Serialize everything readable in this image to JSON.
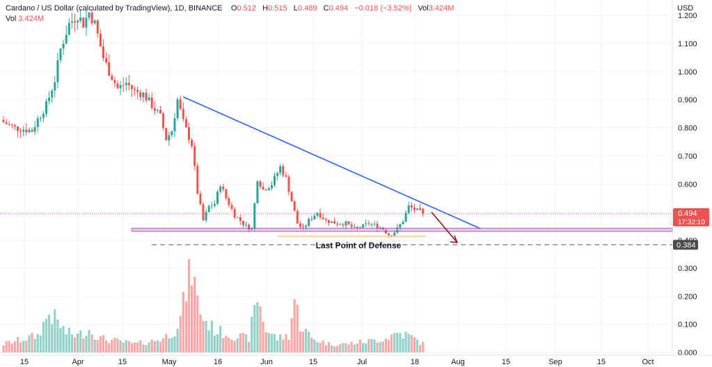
{
  "header": {
    "symbol_line": "Cardano / US Dollar (calculated by TradingView), 1D, BINANCE",
    "o_label": "O",
    "o_value": "0.512",
    "h_label": "H",
    "h_value": "0.515",
    "l_label": "L",
    "l_value": "0.489",
    "c_label": "C",
    "c_value": "0.494",
    "change": "−0.018 (−3.52%)",
    "vol_label": "Vol",
    "vol_value": "3.424M",
    "vol2_label": "Vol",
    "vol2_value": "3.424M"
  },
  "axis": {
    "currency": "USD"
  },
  "annotation": {
    "text": "Last Point of Defense"
  },
  "price_tag": {
    "price": "0.494",
    "countdown": "17:32:10"
  },
  "level_tag": {
    "price": "0.384"
  },
  "colors": {
    "up": "#26a69a",
    "down": "#ef5350",
    "trend": "#2962ff",
    "support": "#9c27b0",
    "zone": "#ffcc80",
    "arrow": "#8b1a1a",
    "dash": "#8a8a8a"
  },
  "chart_data": {
    "type": "candlestick",
    "title": "Cardano / US Dollar (calculated by TradingView), 1D, BINANCE",
    "interval": "1D",
    "x_ticks": [
      "15",
      "Apr",
      "15",
      "May",
      "16",
      "Jun",
      "15",
      "Jul",
      "18",
      "Aug",
      "15",
      "Sep",
      "15",
      "Oct"
    ],
    "y_ticks": [
      "1.200",
      "1.100",
      "1.000",
      "0.900",
      "0.800",
      "0.700",
      "0.600",
      "0.400",
      "0.300",
      "0.200",
      "0.100",
      "0.000"
    ],
    "price_anchors": [
      [
        0,
        0.82
      ],
      [
        4,
        0.8
      ],
      [
        10,
        0.79
      ],
      [
        12,
        0.83
      ],
      [
        15,
        0.88
      ],
      [
        18,
        0.97
      ],
      [
        20,
        1.08
      ],
      [
        23,
        1.17
      ],
      [
        26,
        1.2
      ],
      [
        28,
        1.17
      ],
      [
        30,
        1.21
      ],
      [
        32,
        1.17
      ],
      [
        35,
        1.05
      ],
      [
        37,
        1.0
      ],
      [
        40,
        0.94
      ],
      [
        43,
        0.96
      ],
      [
        46,
        0.93
      ],
      [
        49,
        0.92
      ],
      [
        52,
        0.88
      ],
      [
        55,
        0.84
      ],
      [
        57,
        0.76
      ],
      [
        59,
        0.79
      ],
      [
        61,
        0.9
      ],
      [
        63,
        0.82
      ],
      [
        66,
        0.74
      ],
      [
        68,
        0.57
      ],
      [
        70,
        0.47
      ],
      [
        72,
        0.52
      ],
      [
        74,
        0.53
      ],
      [
        76,
        0.6
      ],
      [
        78,
        0.55
      ],
      [
        81,
        0.49
      ],
      [
        85,
        0.45
      ],
      [
        87,
        0.44
      ],
      [
        89,
        0.62
      ],
      [
        91,
        0.58
      ],
      [
        94,
        0.6
      ],
      [
        97,
        0.66
      ],
      [
        99,
        0.62
      ],
      [
        101,
        0.54
      ],
      [
        103,
        0.46
      ],
      [
        105,
        0.44
      ],
      [
        107,
        0.47
      ],
      [
        110,
        0.5
      ],
      [
        113,
        0.47
      ],
      [
        117,
        0.46
      ],
      [
        120,
        0.46
      ],
      [
        123,
        0.44
      ],
      [
        126,
        0.45
      ],
      [
        128,
        0.46
      ],
      [
        131,
        0.45
      ],
      [
        133,
        0.44
      ],
      [
        135,
        0.42
      ],
      [
        136,
        0.42
      ],
      [
        138,
        0.44
      ],
      [
        140,
        0.47
      ],
      [
        142,
        0.52
      ],
      [
        144,
        0.51
      ],
      [
        146,
        0.5
      ],
      [
        147,
        0.494
      ]
    ],
    "volume_anchors": [
      [
        0,
        0.03
      ],
      [
        8,
        0.05
      ],
      [
        12,
        0.06
      ],
      [
        16,
        0.14
      ],
      [
        18,
        0.12
      ],
      [
        22,
        0.07
      ],
      [
        26,
        0.06
      ],
      [
        30,
        0.08
      ],
      [
        34,
        0.05
      ],
      [
        40,
        0.04
      ],
      [
        46,
        0.03
      ],
      [
        52,
        0.04
      ],
      [
        56,
        0.05
      ],
      [
        60,
        0.08
      ],
      [
        62,
        0.12
      ],
      [
        64,
        0.22
      ],
      [
        66,
        0.3
      ],
      [
        68,
        0.18
      ],
      [
        70,
        0.12
      ],
      [
        74,
        0.08
      ],
      [
        80,
        0.06
      ],
      [
        86,
        0.05
      ],
      [
        89,
        0.2
      ],
      [
        92,
        0.08
      ],
      [
        96,
        0.05
      ],
      [
        100,
        0.06
      ],
      [
        102,
        0.19
      ],
      [
        104,
        0.1
      ],
      [
        108,
        0.05
      ],
      [
        114,
        0.03
      ],
      [
        120,
        0.03
      ],
      [
        128,
        0.04
      ],
      [
        134,
        0.05
      ],
      [
        138,
        0.07
      ],
      [
        142,
        0.06
      ],
      [
        147,
        0.03
      ]
    ],
    "trendline": {
      "from": [
        63,
        0.91
      ],
      "to": [
        167,
        0.442
      ]
    },
    "support_band": {
      "from_bar": 45,
      "high": 0.442,
      "low": 0.432
    },
    "support_zone": {
      "from_bar": 96,
      "to_bar": 148,
      "high": 0.418,
      "low": 0.41
    },
    "defense_level": {
      "from_bar": 52,
      "value": 0.384
    },
    "projection_arrow": {
      "from": [
        150,
        0.5
      ],
      "to": [
        159,
        0.392
      ]
    },
    "last_price": 0.494,
    "ylim": [
      0.0,
      1.22
    ],
    "volume_ylim": [
      0.0,
      0.32
    ]
  }
}
